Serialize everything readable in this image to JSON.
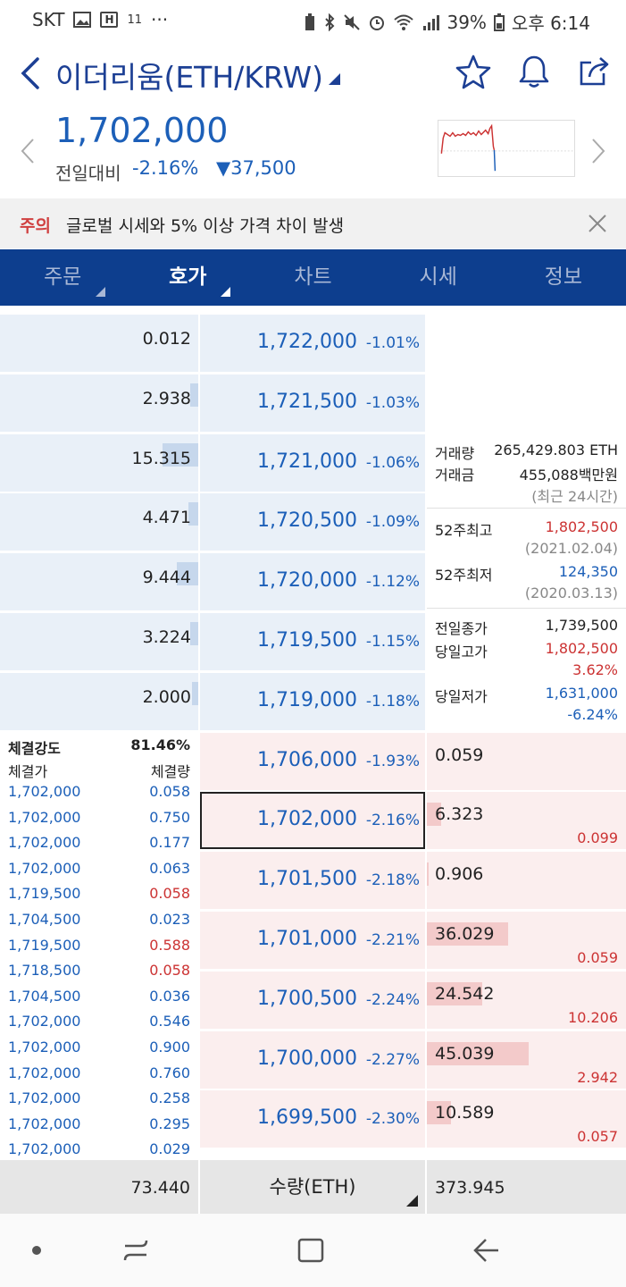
{
  "status_bar": {
    "carrier": "SKT",
    "small_glyph": "11",
    "dots": "···",
    "battery": "39%",
    "time": "오후 6:14"
  },
  "header": {
    "title": "이더리움(ETH/KRW)",
    "icons": [
      "back-icon",
      "star-icon",
      "bell-icon",
      "share-icon"
    ]
  },
  "ticker": {
    "price": "1,702,000",
    "change_label": "전일대비",
    "change_rate": "-2.16%",
    "change_amount": "▼37,500"
  },
  "notice": {
    "tag": "주의",
    "message": "글로벌 시세와 5% 이상 가격 차이 발생"
  },
  "tabs": [
    {
      "label": "주문",
      "caret": true
    },
    {
      "label": "호가",
      "caret": true,
      "active": true
    },
    {
      "label": "차트"
    },
    {
      "label": "시세"
    },
    {
      "label": "정보"
    }
  ],
  "asks": [
    {
      "qty": "0.012",
      "price": "1,722,000",
      "pct": "-1.01%",
      "bar": 0.0
    },
    {
      "qty": "2.938",
      "price": "1,721,500",
      "pct": "-1.03%",
      "bar": 0.04
    },
    {
      "qty": "15.315",
      "price": "1,721,000",
      "pct": "-1.06%",
      "bar": 0.18
    },
    {
      "qty": "4.471",
      "price": "1,720,500",
      "pct": "-1.09%",
      "bar": 0.05
    },
    {
      "qty": "9.444",
      "price": "1,720,000",
      "pct": "-1.12%",
      "bar": 0.11
    },
    {
      "qty": "3.224",
      "price": "1,719,500",
      "pct": "-1.15%",
      "bar": 0.04
    },
    {
      "qty": "2.000",
      "price": "1,719,000",
      "pct": "-1.18%",
      "bar": 0.03
    }
  ],
  "bids": [
    {
      "price": "1,706,000",
      "pct": "-1.93%",
      "qty": "0.059",
      "sub": "",
      "bar": 0.0
    },
    {
      "price": "1,702,000",
      "pct": "-2.16%",
      "qty": "6.323",
      "sub": "0.099",
      "bar": 0.07,
      "selected": true
    },
    {
      "price": "1,701,500",
      "pct": "-2.18%",
      "qty": "0.906",
      "sub": "",
      "bar": 0.01
    },
    {
      "price": "1,701,000",
      "pct": "-2.21%",
      "qty": "36.029",
      "sub": "0.059",
      "bar": 0.41
    },
    {
      "price": "1,700,500",
      "pct": "-2.24%",
      "qty": "24.542",
      "sub": "10.206",
      "bar": 0.28
    },
    {
      "price": "1,700,000",
      "pct": "-2.27%",
      "qty": "45.039",
      "sub": "2.942",
      "bar": 0.51
    },
    {
      "price": "1,699,500",
      "pct": "-2.30%",
      "qty": "10.589",
      "sub": "0.057",
      "bar": 0.12
    }
  ],
  "info": {
    "volume_label": "거래량",
    "volume": "265,429.803 ETH",
    "amount_label": "거래금",
    "amount": "455,088백만원",
    "period": "(최근 24시간)",
    "high52_label": "52주최고",
    "high52": "1,802,500",
    "high52_date": "(2021.02.04)",
    "low52_label": "52주최저",
    "low52": "124,350",
    "low52_date": "(2020.03.13)",
    "prev_close_label": "전일종가",
    "prev_close": "1,739,500",
    "day_high_label": "당일고가",
    "day_high": "1,802,500",
    "day_high_pct": "3.62%",
    "day_low_label": "당일저가",
    "day_low": "1,631,000",
    "day_low_pct": "-6.24%"
  },
  "trades": {
    "strength_label": "체결강도",
    "strength": "81.46%",
    "price_header": "체결가",
    "qty_header": "체결량",
    "rows": [
      {
        "price": "1,702,000",
        "qty": "0.058",
        "side": "sell"
      },
      {
        "price": "1,702,000",
        "qty": "0.750",
        "side": "sell"
      },
      {
        "price": "1,702,000",
        "qty": "0.177",
        "side": "sell"
      },
      {
        "price": "1,702,000",
        "qty": "0.063",
        "side": "sell"
      },
      {
        "price": "1,719,500",
        "qty": "0.058",
        "side": "buy"
      },
      {
        "price": "1,704,500",
        "qty": "0.023",
        "side": "sell"
      },
      {
        "price": "1,719,500",
        "qty": "0.588",
        "side": "buy"
      },
      {
        "price": "1,718,500",
        "qty": "0.058",
        "side": "buy"
      },
      {
        "price": "1,704,500",
        "qty": "0.036",
        "side": "sell"
      },
      {
        "price": "1,702,000",
        "qty": "0.546",
        "side": "sell"
      },
      {
        "price": "1,702,000",
        "qty": "0.900",
        "side": "sell"
      },
      {
        "price": "1,702,000",
        "qty": "0.760",
        "side": "sell"
      },
      {
        "price": "1,702,000",
        "qty": "0.258",
        "side": "sell"
      },
      {
        "price": "1,702,000",
        "qty": "0.295",
        "side": "sell"
      },
      {
        "price": "1,702,000",
        "qty": "0.029",
        "side": "sell"
      }
    ]
  },
  "footer": {
    "ask_total": "73.440",
    "unit": "수량(ETH)",
    "bid_total": "373.945"
  },
  "colors": {
    "brand": "#0d3e8e",
    "blue": "#1c5fb8",
    "red": "#cc3333",
    "ask_bg": "#e9f0f8",
    "bid_bg": "#fbeeee"
  }
}
